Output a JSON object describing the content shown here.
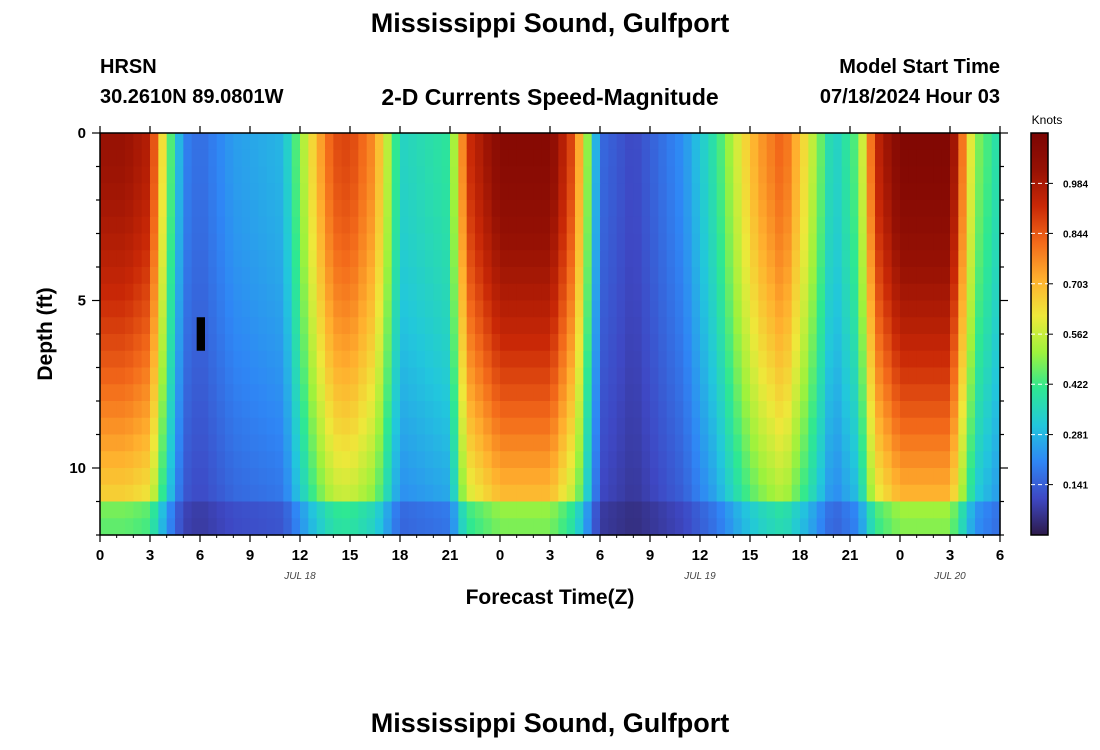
{
  "page": {
    "title": "Mississippi Sound, Gulfport",
    "station": "HRSN",
    "coordinates": "30.2610N  89.0801W",
    "subtitle": "2-D Currents Speed-Magnitude",
    "model_start_label": "Model Start Time",
    "model_start_value": "07/18/2024 Hour 03",
    "footer_title": "Mississippi Sound, Gulfport"
  },
  "chart_data": {
    "type": "heatmap",
    "xlabel": "Forecast Time(Z)",
    "ylabel": "Depth (ft)",
    "x_range": [
      0,
      54
    ],
    "y_range": [
      0,
      12
    ],
    "y_inverted": true,
    "x_tick_labels": [
      "0",
      "3",
      "6",
      "9",
      "12",
      "15",
      "18",
      "21",
      "0",
      "3",
      "6",
      "9",
      "12",
      "15",
      "18",
      "21",
      "0",
      "3",
      "6"
    ],
    "y_tick_labels": [
      "0",
      "5",
      "10"
    ],
    "date_labels": [
      {
        "label": "JUL 18",
        "hour": 12
      },
      {
        "label": "JUL 19",
        "hour": 36
      },
      {
        "label": "JUL 20",
        "hour": 51
      }
    ],
    "colorbar": {
      "label": "Knots",
      "min": 0.0,
      "max": 1.125,
      "ticks": [
        "0.141",
        "0.281",
        "0.422",
        "0.562",
        "0.703",
        "0.844",
        "0.984"
      ],
      "tick_values": [
        0.141,
        0.281,
        0.422,
        0.562,
        0.703,
        0.844,
        0.984
      ]
    },
    "surface_speed_profile": {
      "hours": [
        0,
        1.5,
        3,
        4,
        5,
        6,
        8,
        11,
        13,
        14,
        15,
        16.5,
        18,
        21,
        22,
        24,
        27,
        28.5,
        30,
        32,
        35,
        37,
        38.5,
        39.5,
        41,
        42.5,
        44,
        45.5,
        46.5,
        48,
        51,
        52.5,
        54
      ],
      "knots": [
        1.02,
        1.02,
        0.96,
        0.52,
        0.2,
        0.16,
        0.24,
        0.28,
        0.7,
        0.86,
        0.88,
        0.76,
        0.34,
        0.4,
        0.9,
        1.08,
        1.08,
        0.84,
        0.16,
        0.1,
        0.22,
        0.4,
        0.62,
        0.74,
        0.84,
        0.6,
        0.32,
        0.46,
        0.92,
        1.1,
        1.1,
        0.5,
        0.36
      ]
    },
    "colorscale": [
      "#2d1a4a",
      "#3e48c4",
      "#2f86f5",
      "#22c7dc",
      "#2ee892",
      "#9ef23c",
      "#eee83a",
      "#ffb02e",
      "#f36a1a",
      "#c92806",
      "#961104",
      "#7b0503"
    ],
    "grid": false,
    "colorbar_position": "right"
  }
}
